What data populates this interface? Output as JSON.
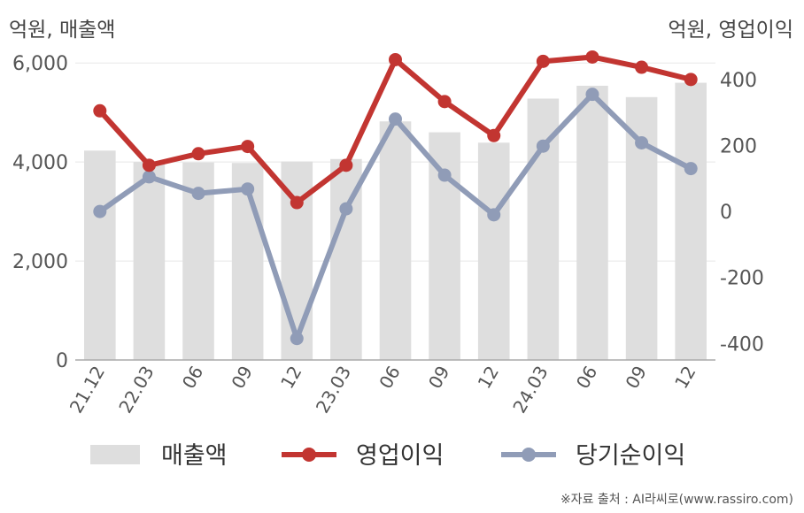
{
  "units": {
    "left": "억원, 매출액",
    "right": "억원, 영업이익"
  },
  "source": "※자료 출처 : AI라씨로(www.rassiro.com)",
  "chart_data": {
    "type": "bar+line",
    "categories": [
      "21.12",
      "22.03",
      "06",
      "09",
      "12",
      "23.03",
      "06",
      "09",
      "12",
      "24.03",
      "06",
      "09",
      "12"
    ],
    "y_left": {
      "ticks": [
        0,
        2000,
        4000,
        6000
      ],
      "tick_labels": [
        "0",
        "2,000",
        "4,000",
        "6,000"
      ],
      "range": [
        0,
        6200
      ]
    },
    "y_right": {
      "ticks": [
        -400,
        -200,
        0,
        200,
        400
      ],
      "tick_labels": [
        "-400",
        "-200",
        "0",
        "200",
        "400"
      ],
      "range": [
        -450,
        480
      ]
    },
    "series": [
      {
        "name": "매출액",
        "type": "bar",
        "axis": "left",
        "color": "#dedede",
        "values": [
          4230,
          4000,
          3990,
          3980,
          4010,
          4060,
          4820,
          4600,
          4390,
          5280,
          5540,
          5310,
          5600
        ]
      },
      {
        "name": "영업이익",
        "type": "line",
        "axis": "right",
        "color": "#c23531",
        "values": [
          305,
          140,
          175,
          197,
          27,
          140,
          460,
          333,
          230,
          455,
          468,
          437,
          400
        ]
      },
      {
        "name": "당기순이익",
        "type": "line",
        "axis": "right",
        "color": "#909cb7",
        "values": [
          0,
          105,
          55,
          68,
          -385,
          8,
          280,
          110,
          -10,
          198,
          355,
          208,
          130
        ]
      }
    ]
  }
}
